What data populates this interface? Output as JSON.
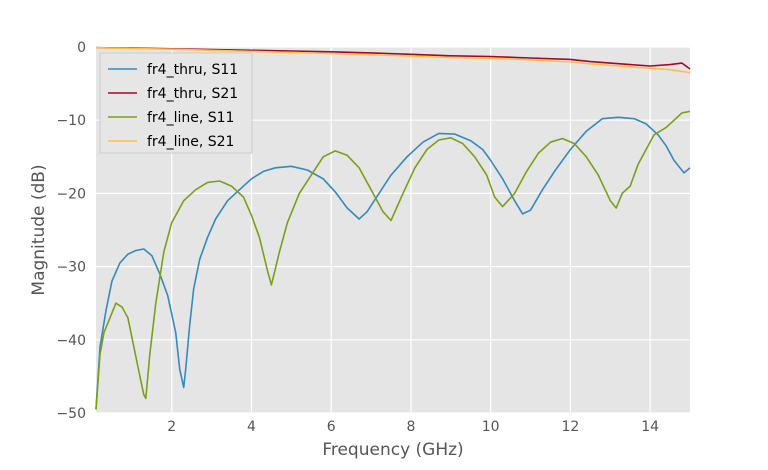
{
  "chart_data": {
    "type": "line",
    "xlabel": "Frequency (GHz)",
    "ylabel": "Magnitude (dB)",
    "xlim": [
      0.1,
      15
    ],
    "ylim": [
      -50,
      0
    ],
    "xticks": [
      2,
      4,
      6,
      8,
      10,
      12,
      14
    ],
    "yticks": [
      0,
      -10,
      -20,
      -30,
      -40,
      -50
    ],
    "grid": true,
    "legend_position": "top-left",
    "colors": {
      "plot_bg": "#E5E5E5",
      "grid": "#FFFFFF"
    },
    "series": [
      {
        "name": "fr4_thru, S11",
        "color": "#348ABD",
        "x": [
          0.1,
          0.2,
          0.35,
          0.5,
          0.7,
          0.9,
          1.1,
          1.3,
          1.5,
          1.7,
          1.9,
          2.1,
          2.2,
          2.3,
          2.35,
          2.45,
          2.55,
          2.7,
          2.9,
          3.1,
          3.4,
          3.7,
          4.0,
          4.3,
          4.6,
          5.0,
          5.4,
          5.8,
          6.1,
          6.4,
          6.7,
          6.9,
          7.2,
          7.5,
          7.9,
          8.3,
          8.7,
          9.1,
          9.5,
          9.8,
          10.0,
          10.3,
          10.6,
          10.8,
          11.0,
          11.3,
          11.6,
          12.0,
          12.4,
          12.8,
          13.2,
          13.6,
          13.9,
          14.2,
          14.4,
          14.6,
          14.85,
          15.0
        ],
        "values": [
          -49.5,
          -41,
          -36,
          -32,
          -29.5,
          -28.3,
          -27.8,
          -27.6,
          -28.5,
          -31,
          -34,
          -39,
          -44,
          -46.5,
          -44,
          -38,
          -33,
          -29,
          -26,
          -23.5,
          -21,
          -19.5,
          -18,
          -17,
          -16.5,
          -16.3,
          -16.8,
          -18,
          -19.8,
          -22,
          -23.5,
          -22.5,
          -20,
          -17.5,
          -15,
          -13,
          -11.8,
          -11.9,
          -12.8,
          -14,
          -15.5,
          -18,
          -21,
          -22.8,
          -22.3,
          -19.5,
          -17,
          -14,
          -11.5,
          -9.8,
          -9.6,
          -9.8,
          -10.5,
          -12,
          -13.5,
          -15.5,
          -17.2,
          -16.5
        ]
      },
      {
        "name": "fr4_thru, S21",
        "color": "#A60628",
        "x": [
          0.1,
          1,
          2,
          3,
          4,
          5,
          6,
          7,
          8,
          9,
          10,
          11,
          12,
          12.5,
          13,
          13.5,
          14,
          14.5,
          14.8,
          15.0
        ],
        "values": [
          -0.1,
          -0.15,
          -0.25,
          -0.35,
          -0.45,
          -0.55,
          -0.65,
          -0.8,
          -1.0,
          -1.2,
          -1.3,
          -1.5,
          -1.7,
          -2.0,
          -2.2,
          -2.4,
          -2.6,
          -2.4,
          -2.2,
          -3.0
        ]
      },
      {
        "name": "fr4_line, S11",
        "color": "#7A9F1A",
        "x": [
          0.1,
          0.2,
          0.3,
          0.45,
          0.6,
          0.75,
          0.9,
          1.05,
          1.2,
          1.3,
          1.35,
          1.45,
          1.6,
          1.8,
          2.0,
          2.3,
          2.6,
          2.9,
          3.2,
          3.5,
          3.8,
          4.0,
          4.2,
          4.4,
          4.5,
          4.7,
          4.9,
          5.2,
          5.5,
          5.8,
          6.1,
          6.4,
          6.7,
          7.0,
          7.3,
          7.5,
          7.8,
          8.1,
          8.4,
          8.7,
          9.0,
          9.3,
          9.6,
          9.9,
          10.1,
          10.3,
          10.6,
          10.9,
          11.2,
          11.5,
          11.8,
          12.1,
          12.4,
          12.7,
          13.0,
          13.15,
          13.3,
          13.5,
          13.7,
          13.9,
          14.1,
          14.4,
          14.6,
          14.8,
          15.0
        ],
        "values": [
          -49.5,
          -42,
          -39,
          -37,
          -35,
          -35.5,
          -37,
          -41,
          -45,
          -47.5,
          -48,
          -42,
          -35,
          -28,
          -24,
          -21,
          -19.5,
          -18.5,
          -18.3,
          -19,
          -20.5,
          -23,
          -26,
          -30.5,
          -32.5,
          -28,
          -24,
          -20,
          -17.5,
          -15,
          -14.2,
          -14.8,
          -16.5,
          -19.5,
          -22.5,
          -23.7,
          -20,
          -16.5,
          -14,
          -12.7,
          -12.4,
          -13.2,
          -15,
          -17.5,
          -20.5,
          -21.8,
          -20,
          -17,
          -14.5,
          -13,
          -12.5,
          -13.2,
          -15,
          -17.5,
          -21,
          -22,
          -20,
          -19,
          -16,
          -14,
          -12,
          -11,
          -10,
          -9,
          -8.8
        ]
      },
      {
        "name": "fr4_line, S21",
        "color": "#FFBF47",
        "x": [
          0.1,
          1,
          2,
          3,
          4,
          5,
          6,
          7,
          8,
          9,
          10,
          11,
          12,
          12.5,
          13,
          13.5,
          14,
          14.5,
          15.0
        ],
        "values": [
          -0.1,
          -0.2,
          -0.3,
          -0.45,
          -0.6,
          -0.75,
          -0.9,
          -1.05,
          -1.25,
          -1.45,
          -1.55,
          -1.75,
          -2.05,
          -2.3,
          -2.5,
          -2.7,
          -2.9,
          -3.1,
          -3.5
        ]
      }
    ]
  }
}
